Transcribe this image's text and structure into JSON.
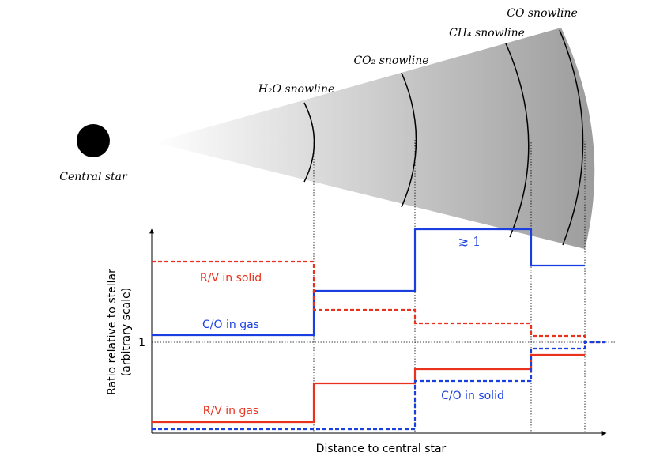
{
  "disk": {
    "star_label": "Central star",
    "snowlines": [
      "H₂O snowline",
      "CO₂ snowline",
      "CH₄ snowline",
      "CO snowline"
    ]
  },
  "plot": {
    "y_label": [
      "Ratio relative to stellar",
      "(arbitrary scale)"
    ],
    "x_label": "Distance to central star",
    "y_tick": "1",
    "annotations": {
      "rv_solid": "R/V in solid",
      "co_gas": "C/O in gas",
      "rv_gas": "R/V in gas",
      "co_solid": "C/O in solid",
      "co_gas_max": "≳ 1"
    }
  }
}
